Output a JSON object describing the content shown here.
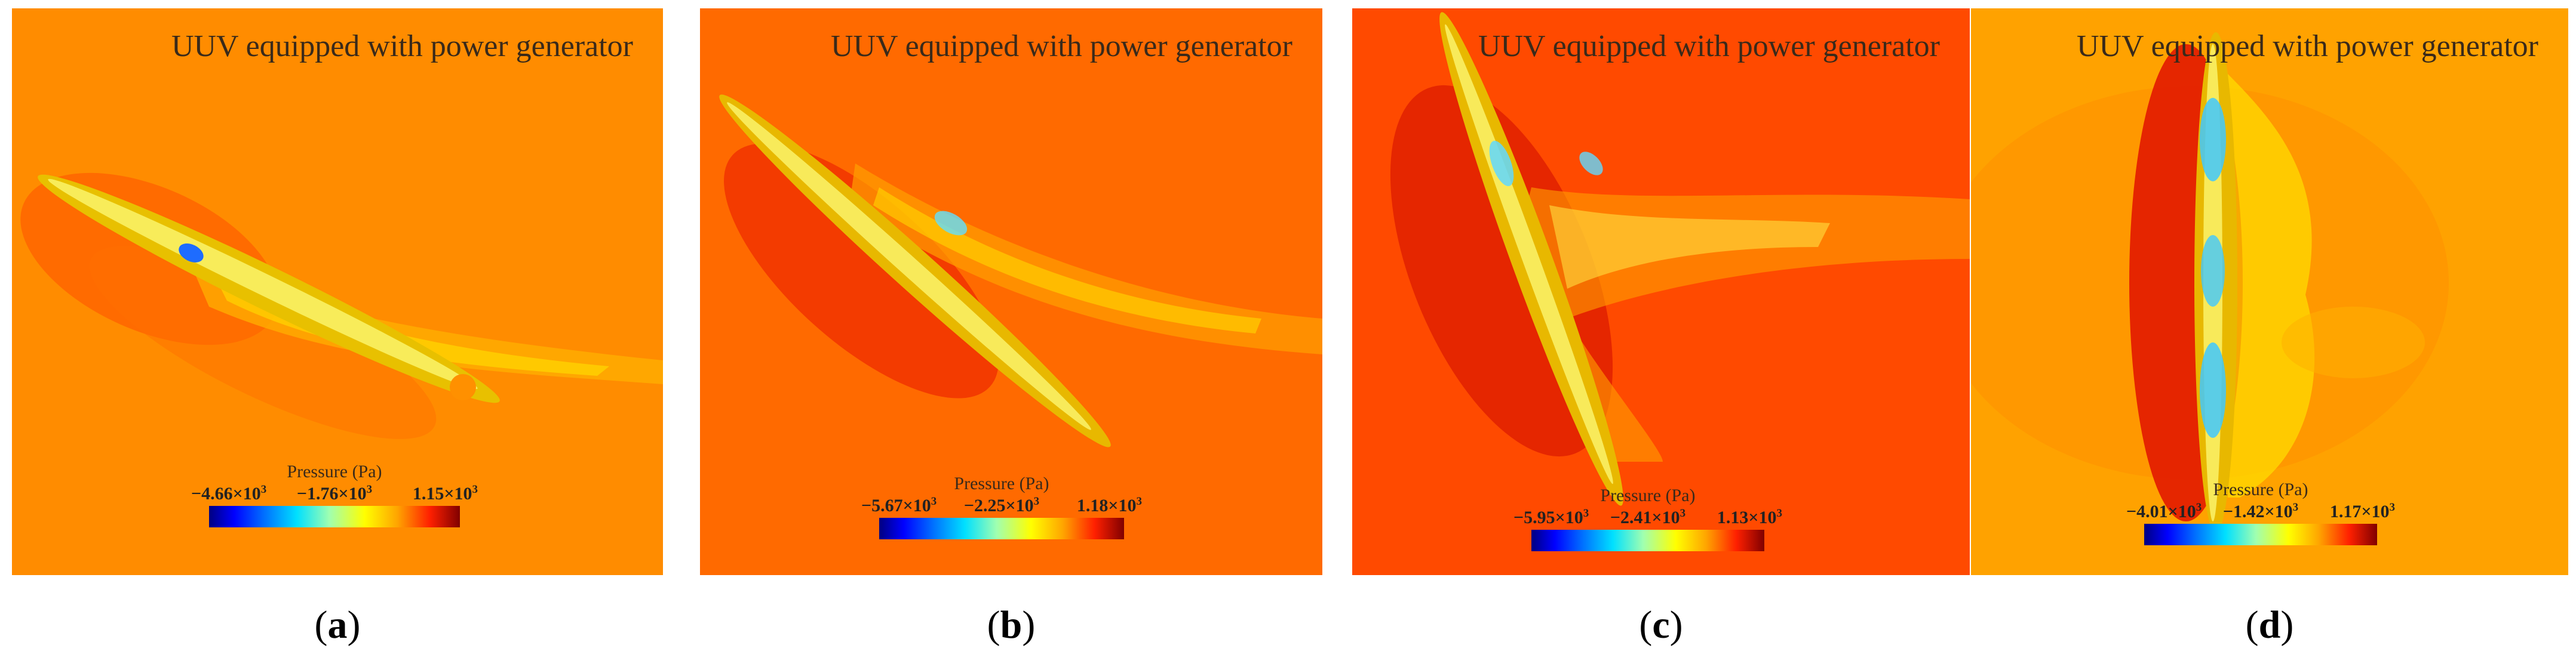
{
  "panels": [
    {
      "id": "a",
      "title": "UUV equipped with power generator",
      "background": "#ff8c00",
      "colorbar": {
        "title": "Pressure (Pa)",
        "min_label": "−4.66×10",
        "mid_label": "−1.76×10",
        "max_label": "1.15×10",
        "exponent": "3"
      },
      "label": "a"
    },
    {
      "id": "b",
      "title": "UUV equipped with power generator",
      "background": "#ff6a00",
      "colorbar": {
        "title": "Pressure (Pa)",
        "min_label": "−5.67×10",
        "mid_label": "−2.25×10",
        "max_label": "1.18×10",
        "exponent": "3"
      },
      "label": "b"
    },
    {
      "id": "c",
      "title": "UUV equipped with power generator",
      "background": "#ff4a00",
      "colorbar": {
        "title": "Pressure (Pa)",
        "min_label": "−5.95×10",
        "mid_label": "−2.41×10",
        "max_label": "1.13×10",
        "exponent": "3"
      },
      "label": "c"
    },
    {
      "id": "d",
      "title": "UUV equipped with power generator",
      "background": "#ffa200",
      "colorbar": {
        "title": "Pressure (Pa)",
        "min_label": "−4.01×10",
        "mid_label": "−1.42×10",
        "max_label": "1.17×10",
        "exponent": "3"
      },
      "label": "d"
    }
  ]
}
